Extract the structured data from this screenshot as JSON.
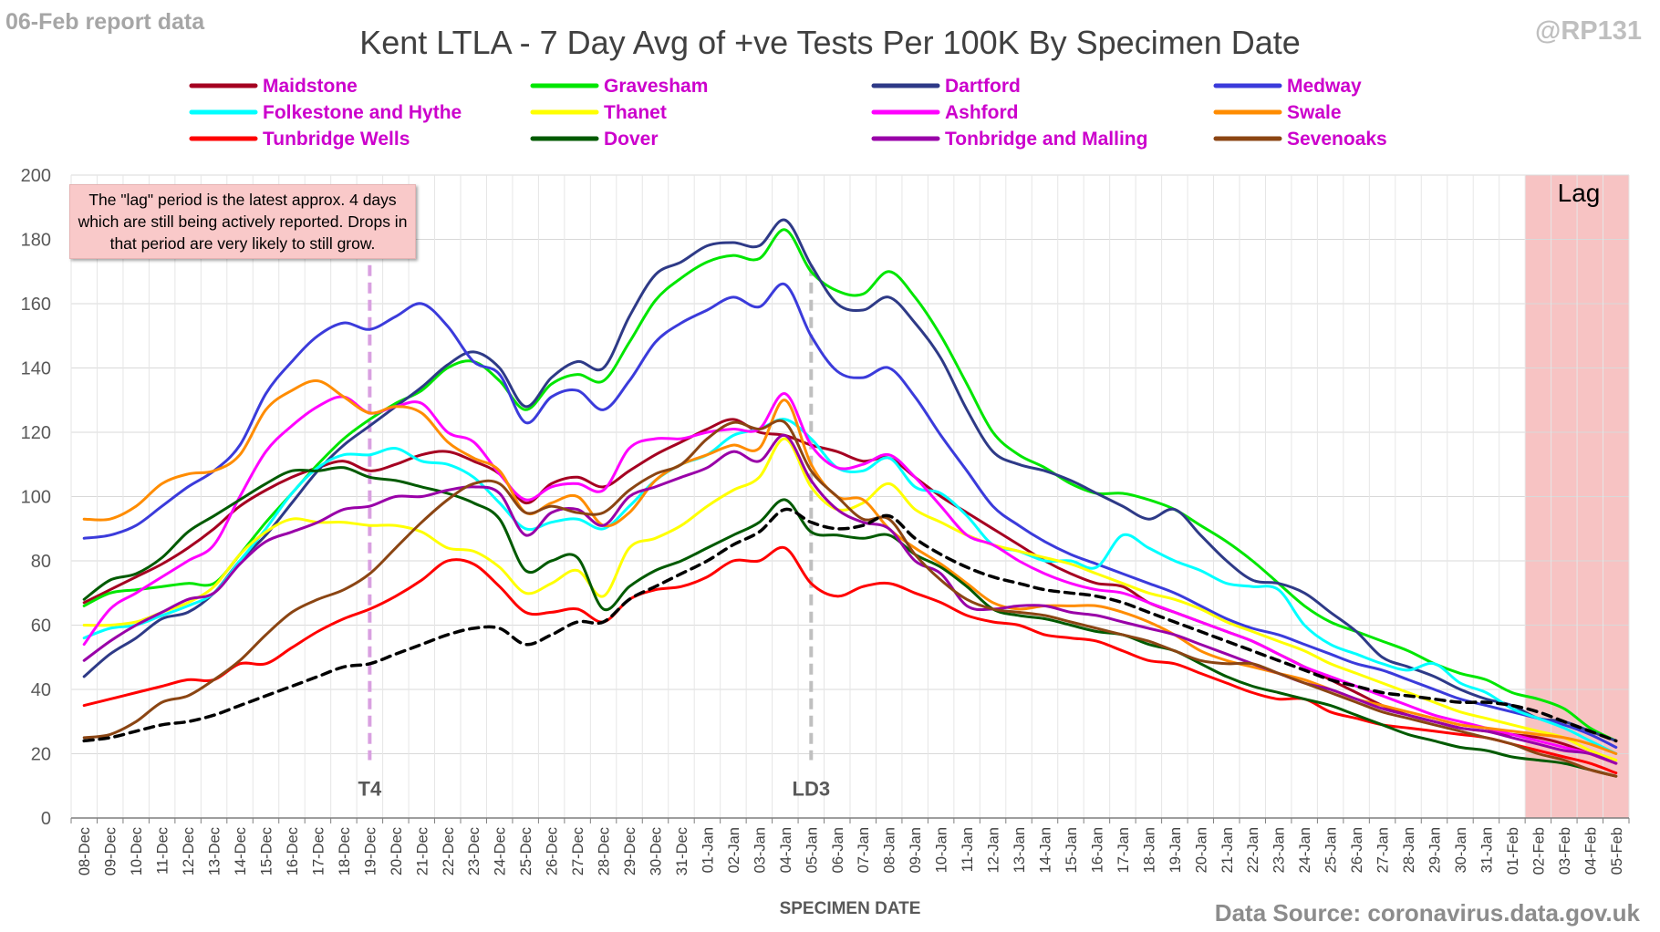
{
  "header": {
    "report_label": "06-Feb report data",
    "handle": "@RP131",
    "source": "Data Source: coronavirus.data.gov.uk"
  },
  "chart_data": {
    "type": "line",
    "title": "Kent  LTLA - 7 Day Avg of +ve Tests Per 100K By Specimen Date",
    "xlabel": "SPECIMEN DATE",
    "ylabel": "",
    "ylim": [
      0,
      200
    ],
    "yticks": [
      0,
      20,
      40,
      60,
      80,
      100,
      120,
      140,
      160,
      180,
      200
    ],
    "grid": true,
    "legend_position": "top",
    "categories": [
      "08-Dec",
      "09-Dec",
      "10-Dec",
      "11-Dec",
      "12-Dec",
      "13-Dec",
      "14-Dec",
      "15-Dec",
      "16-Dec",
      "17-Dec",
      "18-Dec",
      "19-Dec",
      "20-Dec",
      "21-Dec",
      "22-Dec",
      "23-Dec",
      "24-Dec",
      "25-Dec",
      "26-Dec",
      "27-Dec",
      "28-Dec",
      "29-Dec",
      "30-Dec",
      "31-Dec",
      "01-Jan",
      "02-Jan",
      "03-Jan",
      "04-Jan",
      "05-Jan",
      "06-Jan",
      "07-Jan",
      "08-Jan",
      "09-Jan",
      "10-Jan",
      "11-Jan",
      "12-Jan",
      "13-Jan",
      "14-Jan",
      "15-Jan",
      "16-Jan",
      "17-Jan",
      "18-Jan",
      "19-Jan",
      "20-Jan",
      "21-Jan",
      "22-Jan",
      "23-Jan",
      "24-Jan",
      "25-Jan",
      "26-Jan",
      "27-Jan",
      "28-Jan",
      "29-Jan",
      "30-Jan",
      "31-Jan",
      "01-Feb",
      "02-Feb",
      "03-Feb",
      "04-Feb",
      "05-Feb"
    ],
    "series": [
      {
        "name": "Maidstone",
        "color": "#a50021",
        "values": [
          67,
          71,
          75,
          79,
          84,
          90,
          97,
          102,
          106,
          109,
          111,
          108,
          110,
          113,
          114,
          111,
          107,
          98,
          104,
          106,
          103,
          108,
          113,
          117,
          121,
          124,
          120,
          119,
          116,
          114,
          111,
          112,
          106,
          100,
          95,
          90,
          85,
          80,
          76,
          73,
          72,
          67,
          64,
          61,
          58,
          55,
          51,
          47,
          43,
          39,
          35,
          32,
          30,
          28,
          27,
          26,
          25,
          23,
          20,
          17
        ]
      },
      {
        "name": "Gravesham",
        "color": "#00e600",
        "values": [
          66,
          70,
          71,
          72,
          73,
          73,
          82,
          92,
          101,
          110,
          118,
          124,
          129,
          133,
          140,
          142,
          136,
          127,
          135,
          138,
          136,
          148,
          161,
          168,
          173,
          175,
          174,
          183,
          170,
          164,
          163,
          170,
          162,
          150,
          135,
          120,
          113,
          109,
          104,
          101,
          101,
          99,
          96,
          91,
          86,
          80,
          73,
          66,
          61,
          58,
          55,
          52,
          48,
          45,
          43,
          39,
          37,
          34,
          28,
          24
        ]
      },
      {
        "name": "Dartford",
        "color": "#2e3a87",
        "values": [
          44,
          51,
          56,
          62,
          64,
          70,
          80,
          88,
          98,
          108,
          116,
          122,
          128,
          134,
          141,
          145,
          140,
          128,
          137,
          142,
          140,
          156,
          169,
          173,
          178,
          179,
          178,
          186,
          172,
          160,
          158,
          162,
          154,
          143,
          127,
          114,
          110,
          108,
          105,
          101,
          97,
          93,
          96,
          88,
          80,
          74,
          73,
          70,
          64,
          58,
          50,
          47,
          44,
          40,
          37,
          35,
          31,
          30,
          27,
          24
        ]
      },
      {
        "name": "Medway",
        "color": "#3b3bdb",
        "values": [
          87,
          88,
          91,
          97,
          103,
          108,
          116,
          132,
          142,
          150,
          154,
          152,
          156,
          160,
          153,
          142,
          138,
          123,
          131,
          133,
          127,
          136,
          148,
          154,
          158,
          162,
          159,
          166,
          150,
          139,
          137,
          140,
          131,
          119,
          108,
          97,
          91,
          86,
          82,
          79,
          76,
          73,
          70,
          66,
          62,
          59,
          57,
          54,
          51,
          48,
          46,
          43,
          40,
          37,
          35,
          33,
          31,
          29,
          26,
          22
        ]
      },
      {
        "name": "Folkestone and Hythe",
        "color": "#00ffff",
        "values": [
          56,
          59,
          60,
          63,
          66,
          70,
          80,
          90,
          101,
          109,
          113,
          113,
          115,
          111,
          110,
          106,
          98,
          90,
          92,
          93,
          90,
          97,
          105,
          110,
          113,
          119,
          121,
          124,
          118,
          109,
          108,
          112,
          103,
          101,
          94,
          85,
          83,
          80,
          80,
          78,
          88,
          84,
          80,
          77,
          73,
          72,
          71,
          60,
          54,
          51,
          48,
          46,
          48,
          42,
          39,
          34,
          31,
          28,
          24,
          20
        ]
      },
      {
        "name": "Thanet",
        "color": "#ffff00",
        "values": [
          60,
          60,
          61,
          64,
          67,
          72,
          82,
          89,
          93,
          92,
          92,
          91,
          91,
          89,
          84,
          83,
          78,
          70,
          73,
          77,
          69,
          84,
          87,
          91,
          97,
          102,
          106,
          118,
          103,
          96,
          98,
          104,
          96,
          92,
          88,
          85,
          83,
          81,
          79,
          76,
          73,
          70,
          68,
          65,
          61,
          58,
          55,
          52,
          48,
          45,
          42,
          39,
          36,
          33,
          31,
          29,
          27,
          25,
          21,
          18
        ]
      },
      {
        "name": "Ashford",
        "color": "#ff00ff",
        "values": [
          54,
          65,
          70,
          75,
          80,
          85,
          100,
          114,
          122,
          128,
          131,
          126,
          128,
          129,
          120,
          117,
          107,
          99,
          103,
          104,
          102,
          115,
          118,
          118,
          120,
          121,
          121,
          132,
          116,
          109,
          110,
          113,
          106,
          97,
          88,
          85,
          80,
          76,
          73,
          71,
          70,
          67,
          64,
          61,
          58,
          55,
          51,
          47,
          44,
          41,
          38,
          35,
          32,
          30,
          28,
          26,
          24,
          22,
          20,
          17
        ]
      },
      {
        "name": "Swale",
        "color": "#ff8c00",
        "values": [
          93,
          93,
          97,
          104,
          107,
          108,
          113,
          127,
          133,
          136,
          131,
          126,
          128,
          126,
          117,
          112,
          108,
          95,
          98,
          100,
          91,
          95,
          105,
          110,
          113,
          116,
          115,
          130,
          110,
          100,
          99,
          90,
          84,
          79,
          73,
          67,
          65,
          66,
          66,
          66,
          64,
          61,
          57,
          52,
          49,
          47,
          45,
          43,
          40,
          37,
          35,
          33,
          31,
          29,
          28,
          27,
          26,
          25,
          23,
          20
        ]
      },
      {
        "name": "Tunbridge Wells",
        "color": "#ff0000",
        "values": [
          35,
          37,
          39,
          41,
          43,
          43,
          48,
          48,
          53,
          58,
          62,
          65,
          69,
          74,
          80,
          79,
          72,
          64,
          64,
          65,
          61,
          68,
          71,
          72,
          75,
          80,
          80,
          84,
          73,
          69,
          72,
          73,
          70,
          67,
          63,
          61,
          60,
          57,
          56,
          55,
          52,
          49,
          48,
          45,
          42,
          39,
          37,
          37,
          33,
          31,
          29,
          28,
          27,
          26,
          25,
          23,
          21,
          19,
          17,
          14
        ]
      },
      {
        "name": "Dover",
        "color": "#005a00",
        "values": [
          68,
          74,
          76,
          81,
          89,
          94,
          99,
          104,
          108,
          108,
          109,
          106,
          105,
          103,
          101,
          98,
          93,
          77,
          80,
          81,
          65,
          72,
          77,
          80,
          84,
          88,
          92,
          99,
          89,
          88,
          87,
          88,
          82,
          78,
          72,
          65,
          63,
          62,
          60,
          58,
          57,
          54,
          52,
          48,
          44,
          41,
          39,
          37,
          35,
          32,
          29,
          26,
          24,
          22,
          21,
          19,
          18,
          17,
          15,
          13
        ]
      },
      {
        "name": "Tonbridge and Malling",
        "color": "#9900a8",
        "values": [
          49,
          55,
          60,
          64,
          68,
          70,
          79,
          86,
          89,
          92,
          96,
          97,
          100,
          100,
          102,
          103,
          101,
          88,
          95,
          96,
          91,
          100,
          103,
          106,
          109,
          114,
          111,
          119,
          105,
          96,
          92,
          90,
          80,
          76,
          66,
          65,
          66,
          66,
          64,
          63,
          61,
          59,
          57,
          54,
          51,
          48,
          45,
          42,
          40,
          37,
          34,
          32,
          30,
          28,
          27,
          25,
          23,
          21,
          20,
          17
        ]
      },
      {
        "name": "Sevenoaks",
        "color": "#8b4513",
        "values": [
          25,
          26,
          30,
          36,
          38,
          43,
          49,
          57,
          64,
          68,
          71,
          76,
          84,
          92,
          99,
          104,
          104,
          95,
          97,
          95,
          95,
          102,
          107,
          110,
          118,
          123,
          121,
          123,
          108,
          100,
          93,
          93,
          82,
          74,
          68,
          65,
          64,
          63,
          61,
          59,
          57,
          55,
          52,
          49,
          48,
          48,
          45,
          42,
          39,
          36,
          33,
          31,
          29,
          27,
          25,
          23,
          20,
          18,
          15,
          13
        ]
      },
      {
        "name": "",
        "color": "#000000",
        "dashed": true,
        "values": [
          24,
          25,
          27,
          29,
          30,
          32,
          35,
          38,
          41,
          44,
          47,
          48,
          51,
          54,
          57,
          59,
          59,
          54,
          57,
          61,
          61,
          68,
          72,
          76,
          80,
          85,
          89,
          96,
          92,
          90,
          91,
          94,
          87,
          82,
          78,
          75,
          73,
          71,
          70,
          69,
          67,
          64,
          61,
          58,
          55,
          52,
          49,
          46,
          43,
          41,
          39,
          38,
          37,
          36,
          36,
          35,
          33,
          30,
          27,
          24
        ]
      }
    ],
    "markers": [
      {
        "label": "T4",
        "category": "19-Dec",
        "color": "#d9a0e0"
      },
      {
        "label": "LD3",
        "category": "05-Jan",
        "color": "#c0c0c0"
      }
    ],
    "lag_region": {
      "label": "Lag",
      "from": "02-Feb",
      "to": "05-Feb",
      "color": "#f7c3c3"
    },
    "annotation": "The \"lag\" period is the latest approx. 4 days which are still being actively reported. Drops in that period are very likely to still grow."
  }
}
